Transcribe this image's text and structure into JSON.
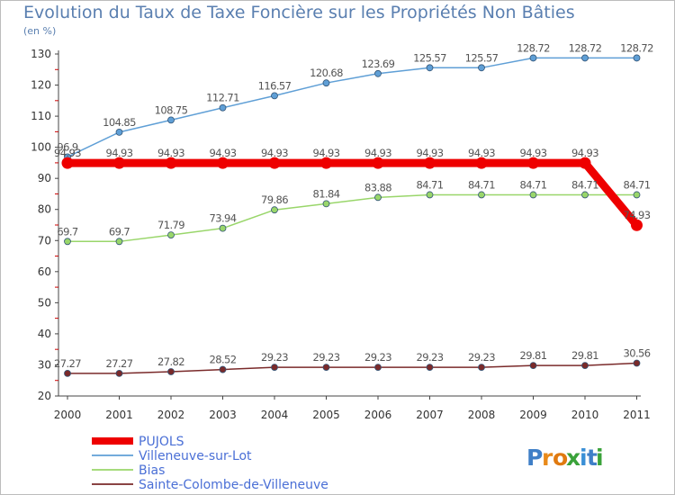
{
  "title": "Evolution du Taux de Taxe Foncière sur les Propriétés Non Bâties",
  "y_unit": "(en %)",
  "logo": "Proxiti",
  "chart_data": {
    "type": "line",
    "x": [
      "2000",
      "2001",
      "2002",
      "2003",
      "2004",
      "2005",
      "2006",
      "2007",
      "2008",
      "2009",
      "2010",
      "2011"
    ],
    "ylim": [
      20,
      130
    ],
    "yticks": [
      20,
      30,
      40,
      50,
      60,
      70,
      80,
      90,
      100,
      110,
      120,
      130
    ],
    "grid": false,
    "legend_position": "bottom-left",
    "series": [
      {
        "name": "PUJOLS",
        "color": "#ee0000",
        "values": [
          94.93,
          94.93,
          94.93,
          94.93,
          94.93,
          94.93,
          94.93,
          94.93,
          94.93,
          94.93,
          94.93,
          74.93
        ],
        "labels": [
          "94.93",
          "94.93",
          "94.93",
          "94.93",
          "94.93",
          "94.93",
          "94.93",
          "94.93",
          "94.93",
          "94.93",
          "94.93",
          "74.93"
        ]
      },
      {
        "name": "Villeneuve-sur-Lot",
        "color": "#5f9fd6",
        "values": [
          96.9,
          104.85,
          108.75,
          112.71,
          116.57,
          120.68,
          123.69,
          125.57,
          125.57,
          128.72,
          128.72,
          128.72
        ],
        "labels": [
          "96.9",
          "104.85",
          "108.75",
          "112.71",
          "116.57",
          "120.68",
          "123.69",
          "125.57",
          "125.57",
          "128.72",
          "128.72",
          "128.72"
        ]
      },
      {
        "name": "Bias",
        "color": "#99d66a",
        "values": [
          69.7,
          69.7,
          71.79,
          73.94,
          79.86,
          81.84,
          83.88,
          84.71,
          84.71,
          84.71,
          84.71,
          84.71
        ],
        "labels": [
          "69.7",
          "69.7",
          "71.79",
          "73.94",
          "79.86",
          "81.84",
          "83.88",
          "84.71",
          "84.71",
          "84.71",
          "84.71",
          "84.71"
        ]
      },
      {
        "name": "Sainte-Colombe-de-Villeneuve",
        "color": "#7a2a2a",
        "values": [
          27.27,
          27.27,
          27.82,
          28.52,
          29.23,
          29.23,
          29.23,
          29.23,
          29.23,
          29.81,
          29.81,
          30.56
        ],
        "labels": [
          "27.27",
          "27.27",
          "27.82",
          "28.52",
          "29.23",
          "29.23",
          "29.23",
          "29.23",
          "29.23",
          "29.81",
          "29.81",
          "30.56"
        ]
      }
    ]
  }
}
